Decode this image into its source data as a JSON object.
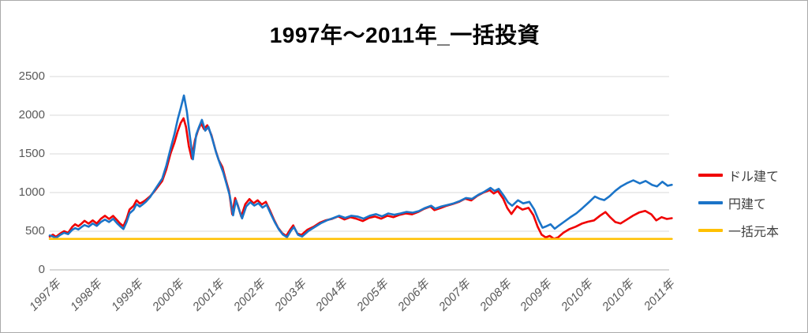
{
  "window": {
    "background": "#ffffff",
    "frame_border_color": "#aaaaaa"
  },
  "chart_data": {
    "type": "line",
    "title": "1997年～2011年_一括投資",
    "xlabel": "",
    "ylabel": "",
    "ylim": [
      0,
      2500
    ],
    "y_ticks": [
      0,
      500,
      1000,
      1500,
      2000,
      2500
    ],
    "xlim_units": [
      0,
      15.2
    ],
    "x_tick_labels": [
      "1997年",
      "1998年",
      "1999年",
      "2000年",
      "2001年",
      "2002年",
      "2003年",
      "2004年",
      "2005年",
      "2006年",
      "2007年",
      "2008年",
      "2009年",
      "2010年",
      "2010年",
      "2011年"
    ],
    "grid": true,
    "legend_position": "right",
    "gridline_color": "#d9d9d9",
    "axis_line_color": "#bfbfbf",
    "tick_label_color": "#595959",
    "title_color": "#000000",
    "series": [
      {
        "name": "ドル建て",
        "color": "#f00000",
        "width": 2.6,
        "points": [
          [
            0,
            430
          ],
          [
            0.08,
            455
          ],
          [
            0.15,
            428
          ],
          [
            0.25,
            468
          ],
          [
            0.35,
            500
          ],
          [
            0.45,
            478
          ],
          [
            0.55,
            555
          ],
          [
            0.62,
            590
          ],
          [
            0.7,
            565
          ],
          [
            0.78,
            600
          ],
          [
            0.85,
            635
          ],
          [
            0.95,
            598
          ],
          [
            1.05,
            640
          ],
          [
            1.15,
            600
          ],
          [
            1.25,
            660
          ],
          [
            1.35,
            700
          ],
          [
            1.45,
            658
          ],
          [
            1.55,
            698
          ],
          [
            1.65,
            640
          ],
          [
            1.72,
            600
          ],
          [
            1.8,
            565
          ],
          [
            1.88,
            660
          ],
          [
            1.95,
            780
          ],
          [
            2.05,
            828
          ],
          [
            2.12,
            900
          ],
          [
            2.2,
            858
          ],
          [
            2.28,
            880
          ],
          [
            2.35,
            905
          ],
          [
            2.45,
            950
          ],
          [
            2.55,
            1010
          ],
          [
            2.65,
            1080
          ],
          [
            2.75,
            1150
          ],
          [
            2.85,
            1300
          ],
          [
            2.95,
            1500
          ],
          [
            3.05,
            1650
          ],
          [
            3.12,
            1780
          ],
          [
            3.2,
            1900
          ],
          [
            3.27,
            1960
          ],
          [
            3.33,
            1850
          ],
          [
            3.4,
            1600
          ],
          [
            3.47,
            1440
          ],
          [
            3.55,
            1680
          ],
          [
            3.62,
            1800
          ],
          [
            3.7,
            1895
          ],
          [
            3.77,
            1820
          ],
          [
            3.85,
            1870
          ],
          [
            3.95,
            1745
          ],
          [
            4.05,
            1550
          ],
          [
            4.13,
            1420
          ],
          [
            4.22,
            1330
          ],
          [
            4.3,
            1170
          ],
          [
            4.38,
            1020
          ],
          [
            4.46,
            720
          ],
          [
            4.53,
            930
          ],
          [
            4.6,
            830
          ],
          [
            4.68,
            690
          ],
          [
            4.78,
            850
          ],
          [
            4.88,
            915
          ],
          [
            4.98,
            860
          ],
          [
            5.08,
            900
          ],
          [
            5.18,
            845
          ],
          [
            5.28,
            880
          ],
          [
            5.38,
            770
          ],
          [
            5.48,
            650
          ],
          [
            5.58,
            545
          ],
          [
            5.68,
            475
          ],
          [
            5.78,
            440
          ],
          [
            5.88,
            525
          ],
          [
            5.95,
            575
          ],
          [
            6.05,
            470
          ],
          [
            6.15,
            452
          ],
          [
            6.3,
            520
          ],
          [
            6.45,
            558
          ],
          [
            6.6,
            610
          ],
          [
            6.75,
            642
          ],
          [
            6.9,
            660
          ],
          [
            7.05,
            692
          ],
          [
            7.2,
            652
          ],
          [
            7.35,
            682
          ],
          [
            7.5,
            660
          ],
          [
            7.65,
            632
          ],
          [
            7.8,
            672
          ],
          [
            7.95,
            690
          ],
          [
            8.1,
            662
          ],
          [
            8.25,
            700
          ],
          [
            8.4,
            682
          ],
          [
            8.55,
            712
          ],
          [
            8.7,
            730
          ],
          [
            8.85,
            718
          ],
          [
            9.0,
            748
          ],
          [
            9.15,
            790
          ],
          [
            9.3,
            820
          ],
          [
            9.4,
            772
          ],
          [
            9.55,
            800
          ],
          [
            9.7,
            830
          ],
          [
            9.85,
            852
          ],
          [
            10.0,
            880
          ],
          [
            10.15,
            920
          ],
          [
            10.3,
            898
          ],
          [
            10.45,
            958
          ],
          [
            10.6,
            1000
          ],
          [
            10.75,
            1032
          ],
          [
            10.85,
            988
          ],
          [
            10.95,
            1020
          ],
          [
            11.08,
            920
          ],
          [
            11.18,
            800
          ],
          [
            11.28,
            722
          ],
          [
            11.42,
            822
          ],
          [
            11.55,
            780
          ],
          [
            11.7,
            802
          ],
          [
            11.82,
            705
          ],
          [
            11.92,
            560
          ],
          [
            12.02,
            455
          ],
          [
            12.12,
            420
          ],
          [
            12.22,
            440
          ],
          [
            12.32,
            402
          ],
          [
            12.42,
            420
          ],
          [
            12.55,
            480
          ],
          [
            12.7,
            528
          ],
          [
            12.85,
            558
          ],
          [
            13.0,
            598
          ],
          [
            13.15,
            622
          ],
          [
            13.3,
            640
          ],
          [
            13.45,
            702
          ],
          [
            13.58,
            748
          ],
          [
            13.7,
            678
          ],
          [
            13.82,
            618
          ],
          [
            13.95,
            600
          ],
          [
            14.1,
            650
          ],
          [
            14.25,
            700
          ],
          [
            14.4,
            742
          ],
          [
            14.55,
            762
          ],
          [
            14.7,
            718
          ],
          [
            14.82,
            640
          ],
          [
            14.95,
            682
          ],
          [
            15.08,
            658
          ],
          [
            15.2,
            668
          ]
        ]
      },
      {
        "name": "円建て",
        "color": "#1b74c8",
        "width": 2.6,
        "points": [
          [
            0,
            445
          ],
          [
            0.08,
            432
          ],
          [
            0.15,
            412
          ],
          [
            0.25,
            450
          ],
          [
            0.35,
            480
          ],
          [
            0.45,
            462
          ],
          [
            0.55,
            518
          ],
          [
            0.62,
            540
          ],
          [
            0.7,
            522
          ],
          [
            0.78,
            555
          ],
          [
            0.85,
            580
          ],
          [
            0.95,
            558
          ],
          [
            1.05,
            600
          ],
          [
            1.15,
            568
          ],
          [
            1.25,
            618
          ],
          [
            1.35,
            650
          ],
          [
            1.45,
            618
          ],
          [
            1.55,
            660
          ],
          [
            1.65,
            600
          ],
          [
            1.72,
            565
          ],
          [
            1.8,
            528
          ],
          [
            1.88,
            620
          ],
          [
            1.95,
            730
          ],
          [
            2.05,
            778
          ],
          [
            2.12,
            850
          ],
          [
            2.2,
            818
          ],
          [
            2.28,
            850
          ],
          [
            2.35,
            882
          ],
          [
            2.45,
            940
          ],
          [
            2.55,
            1020
          ],
          [
            2.65,
            1100
          ],
          [
            2.75,
            1180
          ],
          [
            2.85,
            1350
          ],
          [
            2.95,
            1560
          ],
          [
            3.05,
            1760
          ],
          [
            3.13,
            1950
          ],
          [
            3.2,
            2090
          ],
          [
            3.28,
            2255
          ],
          [
            3.35,
            2050
          ],
          [
            3.42,
            1750
          ],
          [
            3.5,
            1430
          ],
          [
            3.58,
            1750
          ],
          [
            3.65,
            1850
          ],
          [
            3.72,
            1940
          ],
          [
            3.8,
            1800
          ],
          [
            3.88,
            1850
          ],
          [
            3.97,
            1700
          ],
          [
            4.07,
            1510
          ],
          [
            4.15,
            1390
          ],
          [
            4.24,
            1260
          ],
          [
            4.32,
            1110
          ],
          [
            4.4,
            960
          ],
          [
            4.48,
            705
          ],
          [
            4.55,
            900
          ],
          [
            4.62,
            790
          ],
          [
            4.7,
            665
          ],
          [
            4.8,
            820
          ],
          [
            4.9,
            875
          ],
          [
            5.0,
            832
          ],
          [
            5.1,
            862
          ],
          [
            5.2,
            805
          ],
          [
            5.3,
            842
          ],
          [
            5.4,
            725
          ],
          [
            5.5,
            615
          ],
          [
            5.6,
            522
          ],
          [
            5.7,
            455
          ],
          [
            5.8,
            422
          ],
          [
            5.9,
            512
          ],
          [
            5.97,
            552
          ],
          [
            6.07,
            452
          ],
          [
            6.17,
            432
          ],
          [
            6.32,
            502
          ],
          [
            6.47,
            552
          ],
          [
            6.62,
            602
          ],
          [
            6.77,
            640
          ],
          [
            6.92,
            668
          ],
          [
            7.07,
            700
          ],
          [
            7.22,
            672
          ],
          [
            7.37,
            700
          ],
          [
            7.52,
            690
          ],
          [
            7.67,
            662
          ],
          [
            7.82,
            700
          ],
          [
            7.97,
            720
          ],
          [
            8.12,
            692
          ],
          [
            8.27,
            730
          ],
          [
            8.42,
            712
          ],
          [
            8.57,
            730
          ],
          [
            8.72,
            750
          ],
          [
            8.87,
            740
          ],
          [
            9.02,
            760
          ],
          [
            9.17,
            800
          ],
          [
            9.32,
            830
          ],
          [
            9.42,
            792
          ],
          [
            9.57,
            820
          ],
          [
            9.72,
            840
          ],
          [
            9.87,
            860
          ],
          [
            10.02,
            890
          ],
          [
            10.17,
            930
          ],
          [
            10.32,
            918
          ],
          [
            10.47,
            970
          ],
          [
            10.62,
            1010
          ],
          [
            10.77,
            1060
          ],
          [
            10.87,
            1020
          ],
          [
            10.97,
            1048
          ],
          [
            11.1,
            955
          ],
          [
            11.2,
            872
          ],
          [
            11.3,
            830
          ],
          [
            11.44,
            900
          ],
          [
            11.57,
            860
          ],
          [
            11.72,
            880
          ],
          [
            11.84,
            780
          ],
          [
            11.94,
            650
          ],
          [
            12.04,
            545
          ],
          [
            12.14,
            565
          ],
          [
            12.24,
            590
          ],
          [
            12.34,
            532
          ],
          [
            12.44,
            572
          ],
          [
            12.57,
            622
          ],
          [
            12.72,
            680
          ],
          [
            12.87,
            732
          ],
          [
            13.02,
            800
          ],
          [
            13.17,
            872
          ],
          [
            13.32,
            948
          ],
          [
            13.44,
            918
          ],
          [
            13.55,
            902
          ],
          [
            13.68,
            952
          ],
          [
            13.82,
            1022
          ],
          [
            13.96,
            1080
          ],
          [
            14.1,
            1120
          ],
          [
            14.26,
            1158
          ],
          [
            14.42,
            1118
          ],
          [
            14.56,
            1150
          ],
          [
            14.72,
            1098
          ],
          [
            14.84,
            1080
          ],
          [
            14.97,
            1140
          ],
          [
            15.1,
            1088
          ],
          [
            15.2,
            1100
          ]
        ]
      },
      {
        "name": "一括元本",
        "color": "#ffc000",
        "width": 2.5,
        "points": [
          [
            0,
            400
          ],
          [
            15.2,
            400
          ]
        ]
      }
    ]
  }
}
